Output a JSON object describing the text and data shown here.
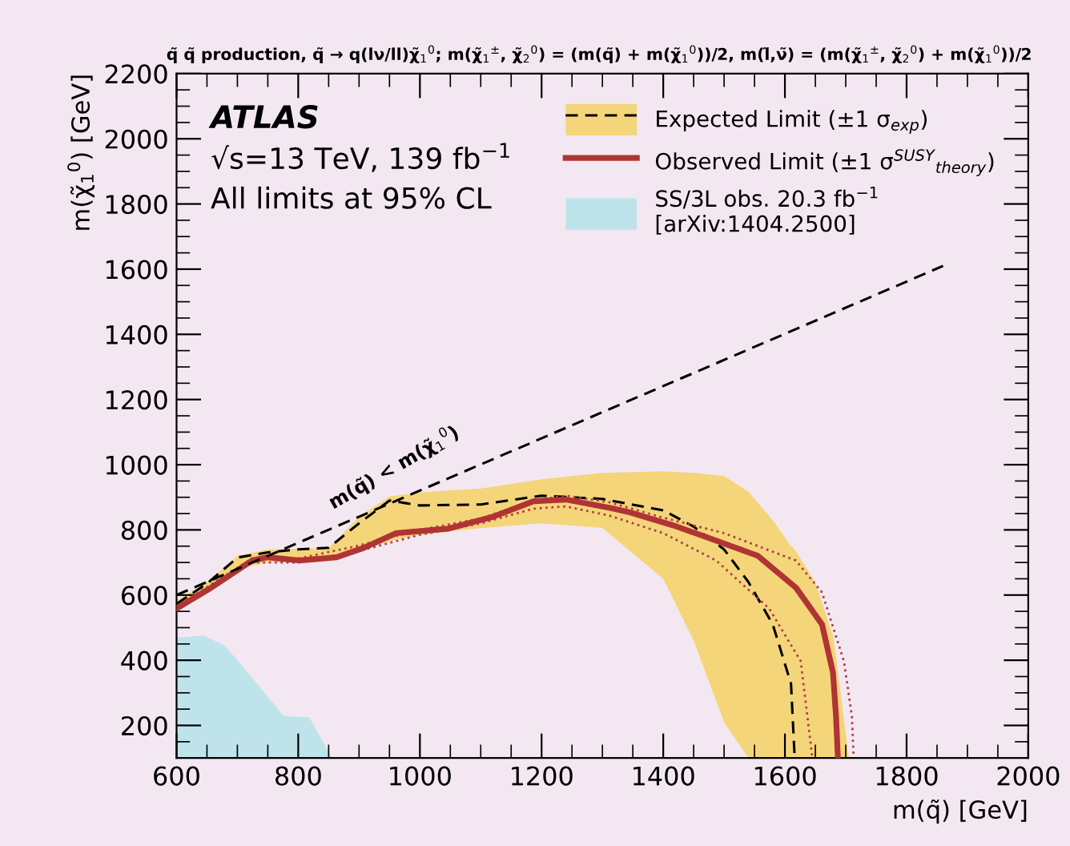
{
  "chart_data": {
    "type": "line",
    "title": "q̃ q̃ production, q̃ → q(lν/ll)χ̃$_{1}$$^{0}$; m(χ̃$_{1}$$^{±}$, χ̃$_{2}$$^{0}$) = (m(q̃) + m(χ̃$_{1}$$^{0}$))/2, m(l̃,ν̃) = (m(χ̃$_{1}$$^{±}$, χ̃$_{2}$$^{0}$) + m(χ̃$_{1}$$^{0}$))/2",
    "xlabel": "m(q̃) [GeV]",
    "ylabel": "m(χ̃$_{1}$$^{0}$) [GeV]",
    "annotations": [
      "ATLAS",
      "√s=13 TeV, 139 fb$^{−1}$",
      "All limits at 95% CL",
      "m(q̃) < m(χ̃$_{1}$$^{0}$)"
    ],
    "series": [
      {
        "type": "area",
        "color": "#f5d57a",
        "x": [
          600,
          650,
          700,
          750,
          800,
          850,
          900,
          950,
          1000,
          1100,
          1200,
          1300,
          1400,
          1450,
          1500,
          1540,
          1580,
          1610,
          1616,
          1650,
          1680,
          1705
        ],
        "lower": [
          549,
          610,
          680,
          700,
          703,
          706,
          735,
          765,
          785,
          805,
          820,
          806,
          650,
          460,
          210,
          100,
          100,
          100,
          100,
          100,
          100,
          100
        ],
        "values": [
          null,
          null,
          null,
          null,
          null,
          null,
          null,
          null,
          null,
          null,
          null,
          null,
          null,
          null,
          null,
          null,
          null,
          null,
          null,
          null,
          null,
          null
        ],
        "upper": [
          583,
          640,
          720,
          740,
          742,
          745,
          840,
          903,
          915,
          927,
          955,
          975,
          980,
          975,
          965,
          917,
          830,
          750,
          740,
          640,
          470,
          102
        ]
      },
      {
        "type": "line",
        "name": "Expected Limit (±1 σ$_{exp}$)",
        "color": "#000000",
        "line_style": "dashed",
        "x": [
          600,
          650,
          700,
          750,
          800,
          850,
          900,
          950,
          1000,
          1100,
          1200,
          1300,
          1400,
          1450,
          1500,
          1540,
          1580,
          1610,
          1616
        ],
        "values": [
          573,
          635,
          715,
          731,
          740,
          745,
          820,
          890,
          875,
          878,
          905,
          895,
          860,
          810,
          740,
          640,
          510,
          328,
          102
        ]
      },
      {
        "type": "line",
        "color": "#b0404a",
        "line_style": "dotted",
        "x": [
          600,
          724,
          800,
          900,
          1000,
          1100,
          1187,
          1240,
          1311,
          1397,
          1500,
          1618,
          1661,
          1697,
          1710,
          1713
        ],
        "values": [
          565,
          712,
          712,
          752,
          800,
          835,
          890,
          905,
          885,
          839,
          790,
          706,
          608,
          397,
          229,
          102
        ]
      },
      {
        "type": "line",
        "color": "#b0404a",
        "line_style": "dotted",
        "x": [
          600,
          724,
          800,
          900,
          1000,
          1100,
          1187,
          1240,
          1311,
          1400,
          1487,
          1574,
          1626,
          1645
        ],
        "values": [
          553,
          700,
          700,
          735,
          785,
          820,
          865,
          872,
          844,
          790,
          706,
          559,
          397,
          102
        ]
      },
      {
        "type": "line",
        "name": "Observed Limit (±1 σ$^{SUSY}$$_{theory}$)",
        "color": "#b03434",
        "line_style": "solid",
        "x": [
          600,
          653,
          724,
          750,
          802,
          863,
          908,
          961,
          1047,
          1118,
          1187,
          1240,
          1311,
          1345,
          1416,
          1468,
          1555,
          1618,
          1661,
          1679,
          1684,
          1687
        ],
        "values": [
          559,
          618,
          706,
          716,
          706,
          716,
          745,
          790,
          804,
          839,
          888,
          893,
          868,
          854,
          814,
          780,
          721,
          623,
          510,
          362,
          229,
          102
        ]
      },
      {
        "type": "area",
        "name": "SS/3L obs. 20.3 fb$^{−1}$\n[arXiv:1404.2500]",
        "color": "#bfe3ea",
        "x": [
          600,
          645,
          679,
          724,
          776,
          818,
          855
        ],
        "values": [
          470,
          475,
          446,
          347,
          229,
          225,
          102
        ]
      },
      {
        "color": "#000000",
        "line_style": "dashed",
        "x": [
          600,
          1860
        ],
        "values": [
          600,
          1610
        ]
      }
    ],
    "xlim": [
      600,
      2000
    ],
    "xticks": [
      600,
      800,
      1000,
      1200,
      1400,
      1600,
      1800,
      2000
    ],
    "ylim": [
      100,
      2200
    ],
    "yticks": [
      200,
      400,
      600,
      800,
      1000,
      1200,
      1400,
      1600,
      1800,
      2000,
      2200
    ],
    "grid": false,
    "legend": "top right"
  }
}
